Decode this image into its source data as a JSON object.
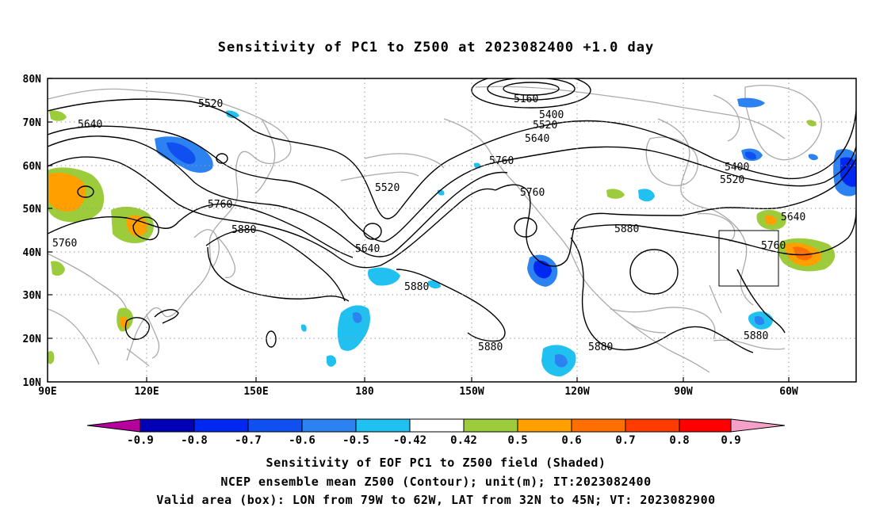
{
  "title": "Sensitivity of PC1 to Z500 at 2023082400 +1.0 day",
  "lat_labels": [
    "80N",
    "70N",
    "60N",
    "50N",
    "40N",
    "30N",
    "20N",
    "10N"
  ],
  "lon_labels": [
    "90E",
    "120E",
    "150E",
    "180",
    "150W",
    "120W",
    "90W",
    "60W"
  ],
  "contour_labels": [
    "5160",
    "5400",
    "5520",
    "5640",
    "5520",
    "5640",
    "5760",
    "5760",
    "5520",
    "5760",
    "5880",
    "5640",
    "5880",
    "5760",
    "5880",
    "5880",
    "5400",
    "5520",
    "5640",
    "5760",
    "5880"
  ],
  "colorbar": {
    "labels": [
      "-0.9",
      "-0.8",
      "-0.7",
      "-0.6",
      "-0.5",
      "-0.42",
      "0.42",
      "0.5",
      "0.6",
      "0.7",
      "0.8",
      "0.9"
    ],
    "colors": [
      "#b6009e",
      "#0000b4",
      "#0028f0",
      "#1050f0",
      "#2c82f0",
      "#20c0f0",
      "#ffffff",
      "#9ccc3c",
      "#ffa000",
      "#ff6e00",
      "#ff3c00",
      "#ff0000",
      "#f5a0c8"
    ]
  },
  "footer": {
    "line1": "Sensitivity of EOF PC1 to Z500 field (Shaded)",
    "line2": "NCEP ensemble mean Z500 (Contour); unit(m); IT:2023082400",
    "line3": "Valid area (box): LON from 79W to 62W, LAT from 32N to 45N; VT: 2023082900"
  }
}
